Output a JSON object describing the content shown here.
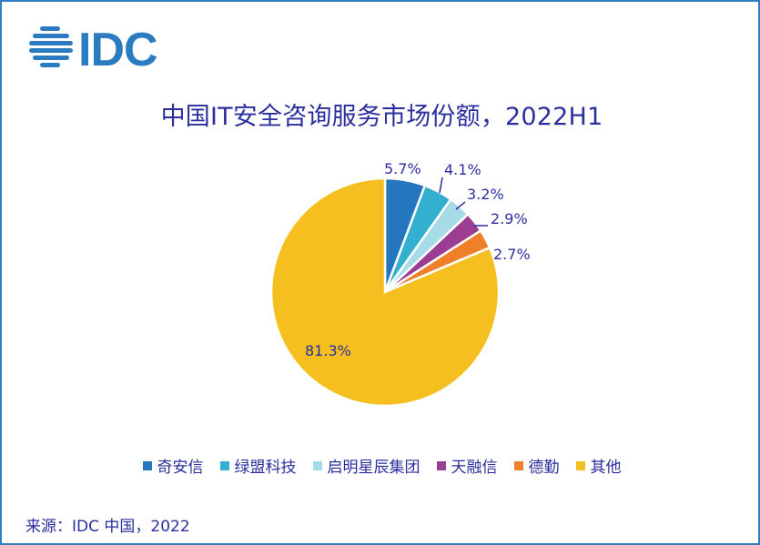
{
  "logo": {
    "text": "IDC",
    "color": "#2b7bc0"
  },
  "colors": {
    "frame": "#2f7fc1",
    "title": "#2b2f9e",
    "label": "#2b2f9e"
  },
  "chart_data": {
    "type": "pie",
    "title": "中国IT安全咨询服务市场份额，2022H1",
    "slices": [
      {
        "name": "奇安信",
        "value": 5.7,
        "label": "5.7%",
        "color": "#2476bd"
      },
      {
        "name": "绿盟科技",
        "value": 4.1,
        "label": "4.1%",
        "color": "#33b0cf"
      },
      {
        "name": "启明星辰集团",
        "value": 3.2,
        "label": "3.2%",
        "color": "#a8dbe8"
      },
      {
        "name": "天融信",
        "value": 2.9,
        "label": "2.9%",
        "color": "#9b3d93"
      },
      {
        "name": "德勤",
        "value": 2.7,
        "label": "2.7%",
        "color": "#f07f2a"
      },
      {
        "name": "其他",
        "value": 81.3,
        "label": "81.3%",
        "color": "#f5bf1f"
      }
    ],
    "start_angle": "12 o'clock",
    "direction": "clockwise",
    "legend_position": "bottom"
  },
  "source": "来源：IDC 中国，2022"
}
